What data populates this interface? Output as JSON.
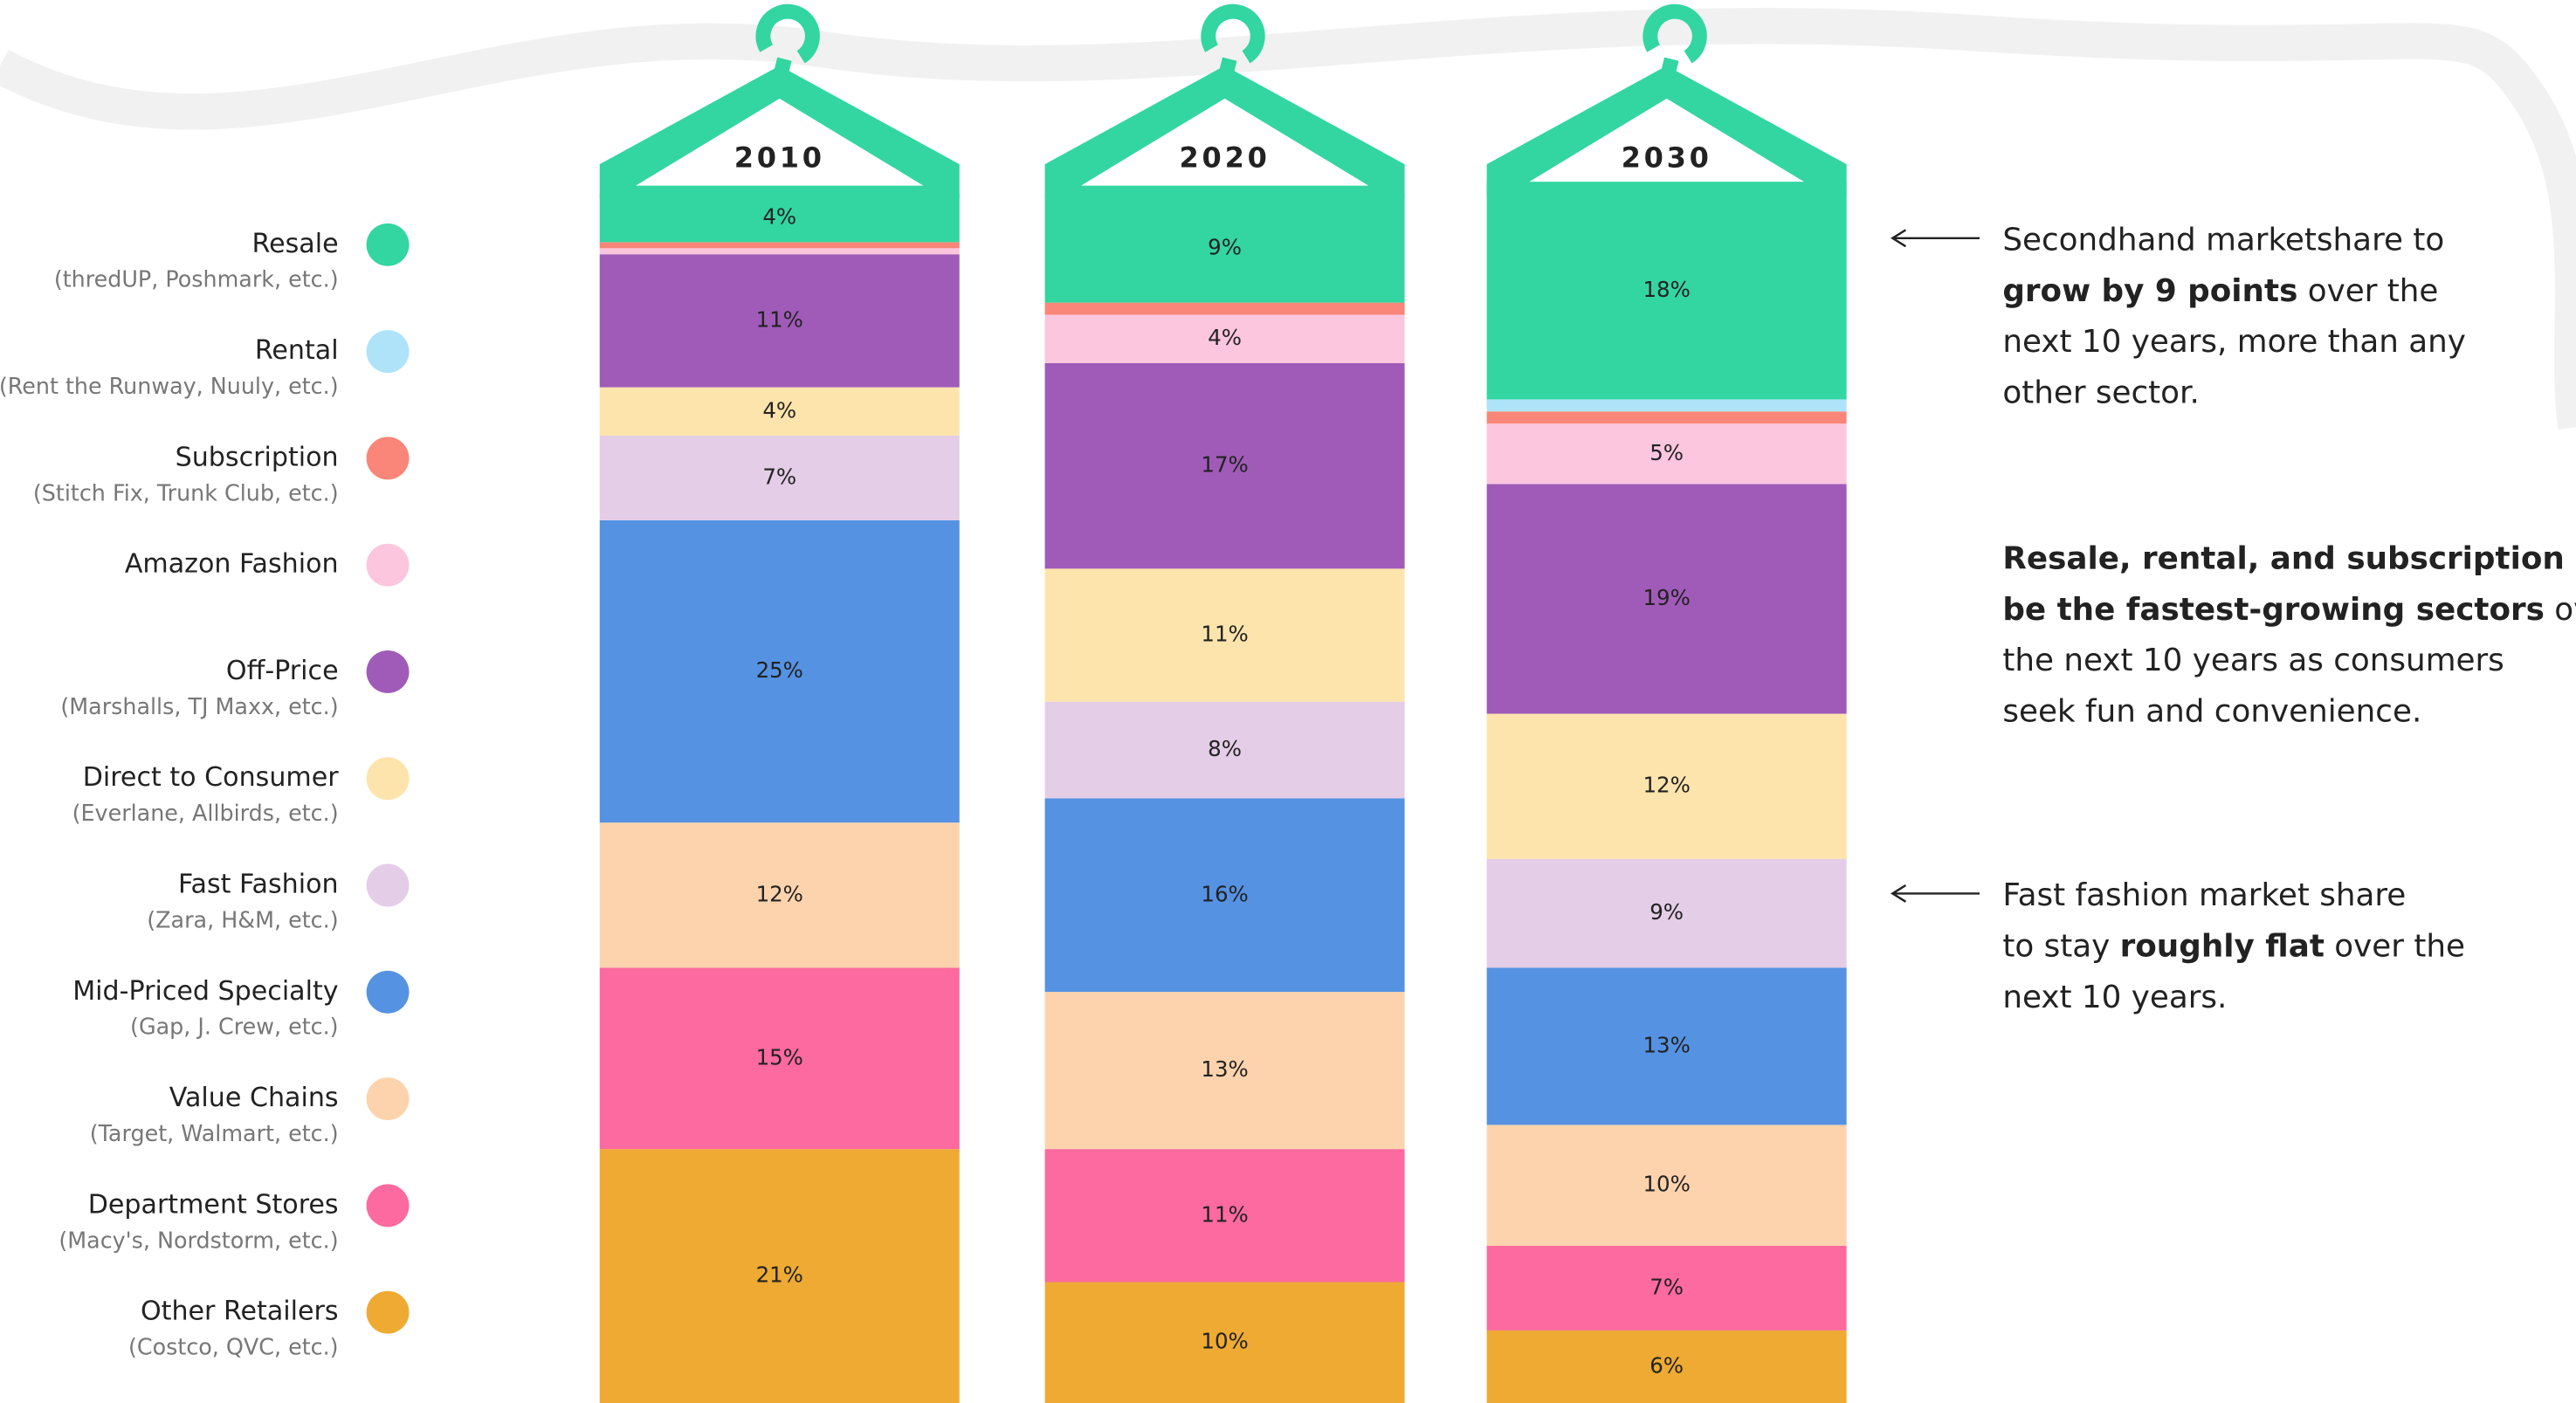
{
  "chart_data": {
    "type": "stacked_bar",
    "categories": [
      "2010",
      "2020",
      "2030"
    ],
    "ylim": [
      0,
      100
    ],
    "series": [
      {
        "name": "Resale",
        "sublabel": "(thredUP, Poshmark, etc.)",
        "color": "#33d6a0",
        "values": [
          4,
          9,
          18
        ],
        "value_labels": [
          "4%",
          "9%",
          "18%"
        ]
      },
      {
        "name": "Rental",
        "sublabel": "(Rent the Runway, Nuuly, etc.)",
        "color": "#aee3fa",
        "values": [
          0,
          0,
          1
        ],
        "value_labels": [
          null,
          null,
          null
        ]
      },
      {
        "name": "Subscription",
        "sublabel": "(Stitch Fix, Trunk Club, etc.)",
        "color": "#f98678",
        "values": [
          0.5,
          1,
          1
        ],
        "value_labels": [
          null,
          null,
          null
        ]
      },
      {
        "name": "Amazon Fashion",
        "color": "#fbc6de",
        "values": [
          0.5,
          4,
          5
        ],
        "value_labels": [
          null,
          "4%",
          "5%"
        ]
      },
      {
        "name": "Off-Price",
        "sublabel": "(Marshalls, TJ Maxx, etc.)",
        "color": "#a05bb8",
        "values": [
          11,
          17,
          19
        ],
        "value_labels": [
          "11%",
          "17%",
          "19%"
        ]
      },
      {
        "name": "Direct to Consumer",
        "sublabel": "(Everlane, Allbirds, etc.)",
        "color": "#fde4ac",
        "values": [
          4,
          11,
          12
        ],
        "value_labels": [
          "4%",
          "11%",
          "12%"
        ]
      },
      {
        "name": "Fast Fashion",
        "sublabel": "(Zara, H&M, etc.)",
        "color": "#e4cde6",
        "values": [
          7,
          8,
          9
        ],
        "value_labels": [
          "7%",
          "8%",
          "9%"
        ]
      },
      {
        "name": "Mid-Priced Specialty",
        "sublabel": "(Gap, J. Crew, etc.)",
        "color": "#5592e2",
        "values": [
          25,
          16,
          13
        ],
        "value_labels": [
          "25%",
          "16%",
          "13%"
        ]
      },
      {
        "name": "Value Chains",
        "sublabel": "(Target, Walmart, etc.)",
        "color": "#fdd3ad",
        "values": [
          12,
          13,
          10
        ],
        "value_labels": [
          "12%",
          "13%",
          "10%"
        ]
      },
      {
        "name": "Department Stores",
        "sublabel": "(Macy's, Nordstorm, etc.)",
        "color": "#fd6a9f",
        "values": [
          15,
          11,
          7
        ],
        "value_labels": [
          "15%",
          "11%",
          "7%"
        ]
      },
      {
        "name": "Other Retailers",
        "sublabel": "(Costco, QVC, etc.)",
        "color": "#eeaa33",
        "values": [
          21,
          10,
          6
        ],
        "value_labels": [
          "21%",
          "10%",
          "6%"
        ]
      }
    ],
    "annotations": [
      {
        "arrow": true,
        "lines": [
          [
            {
              "text": "Secondhand marketshare to"
            }
          ],
          [
            {
              "text": "grow by 9 points",
              "bold": true
            },
            {
              "text": " over the"
            }
          ],
          [
            {
              "text": "next 10 years, more than any"
            }
          ],
          [
            {
              "text": "other sector."
            }
          ]
        ]
      },
      {
        "arrow": false,
        "lines": [
          [
            {
              "text": "Resale, rental, and subscription will",
              "bold": true
            }
          ],
          [
            {
              "text": "be the fastest-growing sectors",
              "bold": true
            },
            {
              "text": " over"
            }
          ],
          [
            {
              "text": "the next 10 years as consumers"
            }
          ],
          [
            {
              "text": "seek fun and convenience."
            }
          ]
        ]
      },
      {
        "arrow": true,
        "lines": [
          [
            {
              "text": "Fast fashion market share"
            }
          ],
          [
            {
              "text": "to stay "
            },
            {
              "text": "roughly flat",
              "bold": true
            },
            {
              "text": " over the"
            }
          ],
          [
            {
              "text": "next 10 years."
            }
          ]
        ]
      }
    ]
  }
}
